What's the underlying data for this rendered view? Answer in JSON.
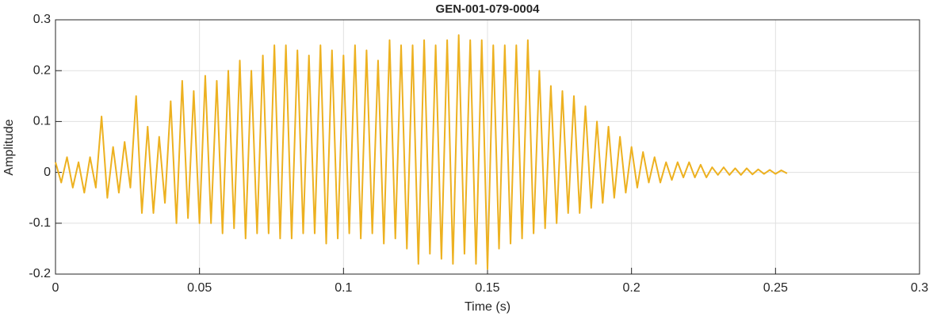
{
  "chart_data": {
    "type": "line",
    "title": "GEN-001-079-0004",
    "xlabel": "Time (s)",
    "ylabel": "Amplitude",
    "xlim": [
      0,
      0.3
    ],
    "xticks": [
      0,
      0.05,
      0.1,
      0.15,
      0.2,
      0.25,
      0.3
    ],
    "ylim": [
      -0.2,
      0.3
    ],
    "yticks": [
      -0.2,
      -0.1,
      0,
      0.1,
      0.2,
      0.3
    ],
    "grid": true,
    "x": [
      0,
      0.002,
      0.004,
      0.006,
      0.008,
      0.01,
      0.012,
      0.014,
      0.016,
      0.018,
      0.02,
      0.022,
      0.024,
      0.026,
      0.028,
      0.03,
      0.032,
      0.034,
      0.036,
      0.038,
      0.04,
      0.042,
      0.044,
      0.046,
      0.048,
      0.05,
      0.052,
      0.054,
      0.056,
      0.058,
      0.06,
      0.062,
      0.064,
      0.066,
      0.068,
      0.07,
      0.072,
      0.074,
      0.076,
      0.078,
      0.08,
      0.082,
      0.084,
      0.086,
      0.088,
      0.09,
      0.092,
      0.094,
      0.096,
      0.098,
      0.1,
      0.102,
      0.104,
      0.106,
      0.108,
      0.11,
      0.112,
      0.114,
      0.116,
      0.118,
      0.12,
      0.122,
      0.124,
      0.126,
      0.128,
      0.13,
      0.132,
      0.134,
      0.136,
      0.138,
      0.14,
      0.142,
      0.144,
      0.146,
      0.148,
      0.15,
      0.152,
      0.154,
      0.156,
      0.158,
      0.16,
      0.162,
      0.164,
      0.166,
      0.168,
      0.17,
      0.172,
      0.174,
      0.176,
      0.178,
      0.18,
      0.182,
      0.184,
      0.186,
      0.188,
      0.19,
      0.192,
      0.194,
      0.196,
      0.198,
      0.2,
      0.202,
      0.204,
      0.206,
      0.208,
      0.21,
      0.212,
      0.214,
      0.216,
      0.218,
      0.22,
      0.222,
      0.224,
      0.226,
      0.228,
      0.23,
      0.232,
      0.234,
      0.236,
      0.238,
      0.24,
      0.242,
      0.244,
      0.246,
      0.248,
      0.25,
      0.252,
      0.254
    ],
    "series": [
      {
        "color": "#EDB120",
        "values": [
          0.02,
          -0.02,
          0.03,
          -0.03,
          0.02,
          -0.04,
          0.03,
          -0.03,
          0.11,
          -0.05,
          0.05,
          -0.04,
          0.06,
          -0.03,
          0.15,
          -0.08,
          0.09,
          -0.08,
          0.07,
          -0.06,
          0.14,
          -0.1,
          0.18,
          -0.09,
          0.16,
          -0.1,
          0.19,
          -0.1,
          0.18,
          -0.12,
          0.2,
          -0.11,
          0.22,
          -0.13,
          0.2,
          -0.12,
          0.23,
          -0.12,
          0.25,
          -0.13,
          0.25,
          -0.13,
          0.24,
          -0.12,
          0.23,
          -0.12,
          0.25,
          -0.14,
          0.24,
          -0.13,
          0.23,
          -0.12,
          0.25,
          -0.13,
          0.24,
          -0.12,
          0.22,
          -0.14,
          0.26,
          -0.13,
          0.25,
          -0.15,
          0.25,
          -0.18,
          0.26,
          -0.16,
          0.25,
          -0.17,
          0.26,
          -0.18,
          0.27,
          -0.16,
          0.26,
          -0.18,
          0.26,
          -0.19,
          0.25,
          -0.15,
          0.25,
          -0.14,
          0.25,
          -0.13,
          0.26,
          -0.12,
          0.2,
          -0.11,
          0.17,
          -0.1,
          0.16,
          -0.08,
          0.15,
          -0.08,
          0.13,
          -0.07,
          0.1,
          -0.06,
          0.09,
          -0.05,
          0.07,
          -0.04,
          0.05,
          -0.03,
          0.04,
          -0.02,
          0.03,
          -0.02,
          0.02,
          -0.015,
          0.02,
          -0.01,
          0.02,
          -0.01,
          0.015,
          -0.01,
          0.01,
          -0.005,
          0.01,
          -0.005,
          0.008,
          -0.005,
          0.008,
          -0.004,
          0.006,
          -0.003,
          0.005,
          -0.003,
          0.004,
          -0.002
        ]
      }
    ]
  }
}
